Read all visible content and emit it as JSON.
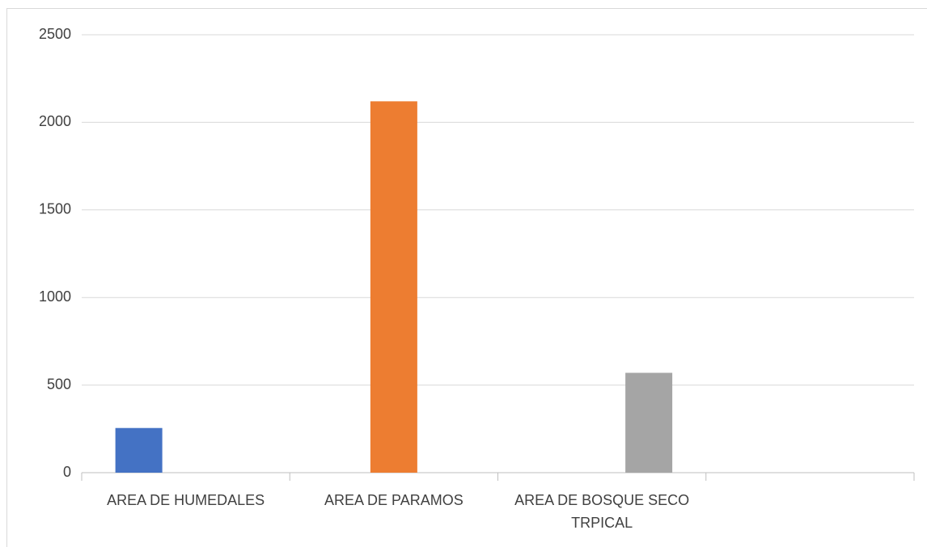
{
  "chart_data": {
    "type": "bar",
    "categories": [
      "AREA DE HUMEDALES",
      "AREA DE PARAMOS",
      "AREA DE BOSQUE SECO TRPICAL",
      null
    ],
    "series": [
      {
        "color": "#4472c4",
        "values": [
          255,
          null,
          null,
          null
        ]
      },
      {
        "color": "#ed7d31",
        "values": [
          null,
          2120,
          null,
          null
        ]
      },
      {
        "color": "#a5a5a5",
        "values": [
          null,
          null,
          570,
          null
        ]
      }
    ],
    "ylim": [
      0,
      2500
    ],
    "yticks": [
      0,
      500,
      1000,
      1500,
      2000,
      2500
    ],
    "grid": true
  }
}
